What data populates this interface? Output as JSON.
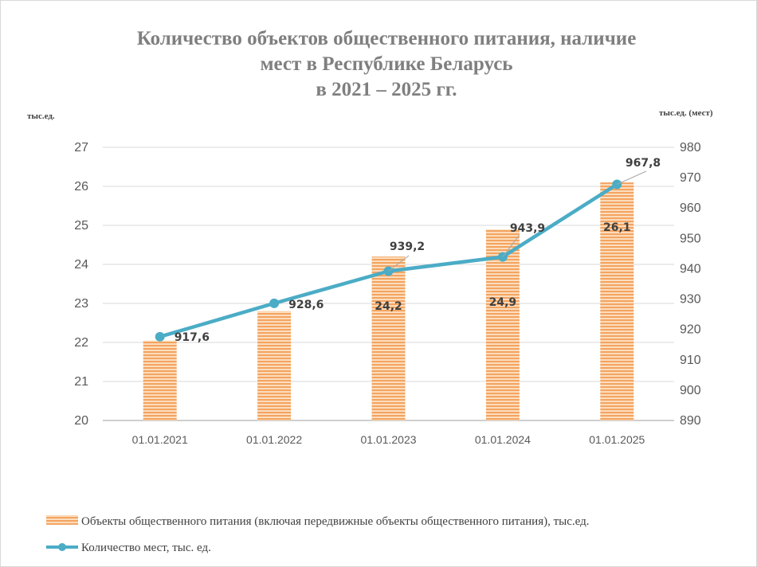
{
  "chart_data": {
    "type": "bar+line",
    "title_lines": [
      "Количество объектов общественного питания, наличие",
      "мест  в Республике Беларусь",
      "в 2021 – 2025 гг."
    ],
    "y_left_label": "тыс.ед.",
    "y_right_label": "тыс.ед. (мест)",
    "categories": [
      "01.01.2021",
      "01.01.2022",
      "01.01.2023",
      "01.01.2024",
      "01.01.2025"
    ],
    "y_left_lim": [
      20,
      27
    ],
    "y_left_ticks": [
      "20",
      "21",
      "22",
      "23",
      "24",
      "25",
      "26",
      "27"
    ],
    "y_right_lim": [
      890,
      980
    ],
    "y_right_ticks": [
      "890",
      "900",
      "910",
      "920",
      "930",
      "940",
      "950",
      "960",
      "970",
      "980"
    ],
    "series": [
      {
        "name": "Объекты общественного питания (включая передвижные объекты общественного питания), тыс.ед.",
        "type": "bar",
        "axis": "left",
        "color": "#f4a460",
        "values": [
          22.05,
          22.8,
          24.2,
          24.9,
          26.1
        ],
        "data_labels": [
          "",
          "",
          "24,2",
          "24,9",
          "26,1"
        ]
      },
      {
        "name": "Количество мест, тыс. ед.",
        "type": "line",
        "axis": "right",
        "color": "#4bacc6",
        "values": [
          917.6,
          928.6,
          939.2,
          943.9,
          967.8
        ],
        "data_labels": [
          "917,6",
          "928,6",
          "939,2",
          "943,9",
          "967,8"
        ]
      }
    ],
    "grid": true,
    "legend_position": "bottom"
  }
}
